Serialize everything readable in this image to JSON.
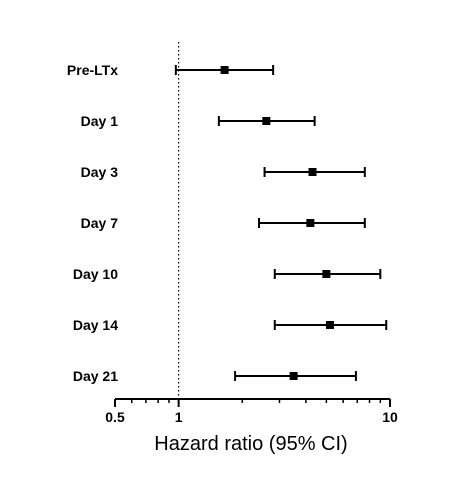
{
  "chart_data": {
    "type": "forest",
    "xlabel": "Hazard ratio (95% CI)",
    "xscale": "log",
    "xlim": [
      0.5,
      10
    ],
    "x_ticks": [
      {
        "value": 0.5,
        "label": "0.5"
      },
      {
        "value": 1,
        "label": "1"
      },
      {
        "value": 10,
        "label": "10"
      }
    ],
    "reference_line": 1,
    "categories": [
      "Pre-LTx",
      "Day 1",
      "Day 3",
      "Day 7",
      "Day 10",
      "Day 14",
      "Day 21"
    ],
    "estimates": [
      1.65,
      2.6,
      4.3,
      4.2,
      5.0,
      5.2,
      3.5
    ],
    "ci_lower": [
      0.97,
      1.55,
      2.55,
      2.4,
      2.85,
      2.85,
      1.85
    ],
    "ci_upper": [
      2.8,
      4.4,
      7.6,
      7.6,
      9.0,
      9.6,
      6.9
    ],
    "grid": false,
    "colors": {
      "marker": "#000000",
      "line": "#000000"
    }
  }
}
